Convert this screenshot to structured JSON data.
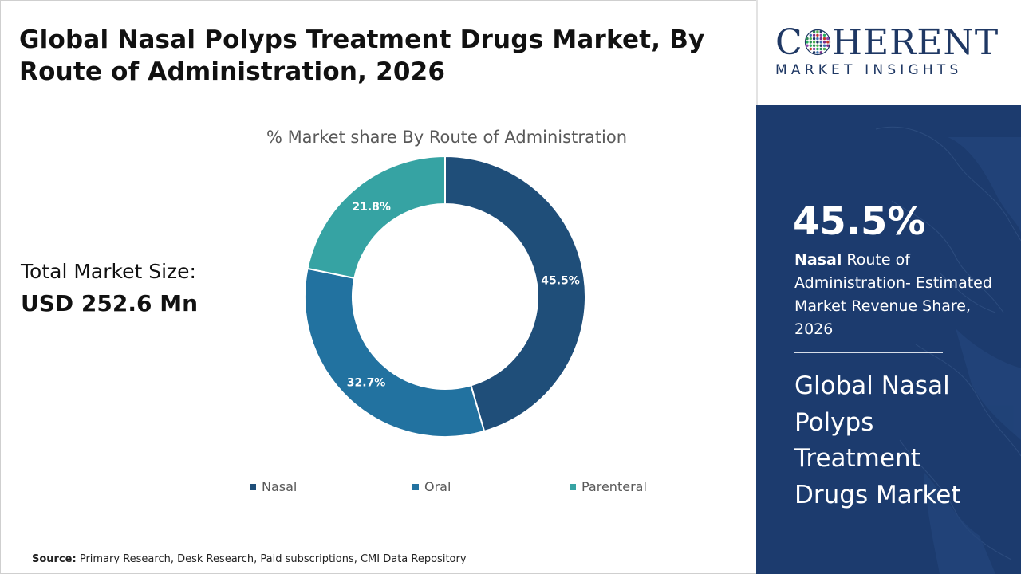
{
  "header": {
    "title": "Global Nasal Polyps Treatment Drugs Market, By Route of Administration, 2026"
  },
  "total_market": {
    "label": "Total Market Size:",
    "value": "USD 252.6 Mn"
  },
  "chart_data": {
    "type": "pie",
    "donut": true,
    "title": "% Market share By Route of Administration",
    "categories": [
      "Nasal",
      "Oral",
      "Parenteral"
    ],
    "values": [
      45.5,
      32.7,
      21.8
    ],
    "labels": [
      "45.5%",
      "32.7%",
      "21.8%"
    ],
    "colors": [
      "#1f4e79",
      "#2272a0",
      "#36a3a3"
    ],
    "legend_position": "bottom",
    "start": "12 o'clock",
    "direction": "clockwise"
  },
  "source": {
    "label": "Source:",
    "text": "Primary Research, Desk Research, Paid subscriptions, CMI Data Repository"
  },
  "brand": {
    "name_pre": "C",
    "name_post": "HERENT",
    "tagline": "MARKET INSIGHTS",
    "color": "#1f3864"
  },
  "highlight": {
    "value": "45.5%",
    "desc_bold": "Nasal",
    "desc_rest": " Route of Administration- Estimated Market Revenue Share, 2026",
    "market_name": "Global Nasal Polyps Treatment Drugs Market",
    "panel_color": "#1c3b6e"
  }
}
